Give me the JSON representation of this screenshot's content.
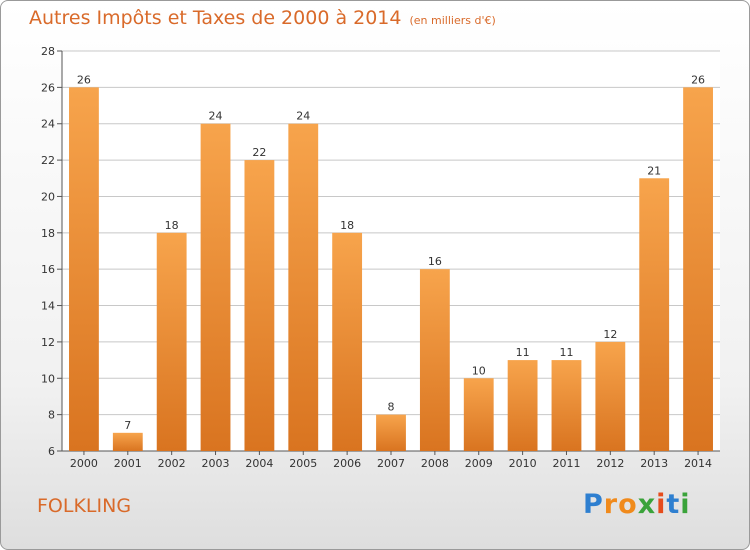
{
  "chart_data": {
    "type": "bar",
    "title": "Autres Impôts et Taxes de 2000 à 2014",
    "subtitle": "(en milliers d'€)",
    "categories": [
      "2000",
      "2001",
      "2002",
      "2003",
      "2004",
      "2005",
      "2006",
      "2007",
      "2008",
      "2009",
      "2010",
      "2011",
      "2012",
      "2013",
      "2014"
    ],
    "values": [
      26,
      7,
      18,
      24,
      22,
      24,
      18,
      8,
      16,
      10,
      11,
      11,
      12,
      21,
      26
    ],
    "data_labels": [
      "26",
      "7",
      "18",
      "24",
      "22",
      "24",
      "18",
      "8",
      "16",
      "10",
      "11",
      "11",
      "12",
      "21",
      "26"
    ],
    "ylim": [
      6,
      28
    ],
    "yticks": [
      6,
      8,
      10,
      12,
      14,
      16,
      18,
      20,
      22,
      24,
      26,
      28
    ],
    "xlabel": "",
    "ylabel": "",
    "grid": true,
    "bar_color_top": "#f7a44c",
    "bar_color_bottom": "#d97420"
  },
  "footer": {
    "town": "FOLKLING",
    "logo_letters": [
      "P",
      "r",
      "o",
      "x",
      "i",
      "t",
      "i"
    ],
    "logo_colors": [
      "#2e7fd0",
      "#f08a1c",
      "#f08a1c",
      "#3aa33a",
      "#e64c1c",
      "#2e7fd0",
      "#3aa33a"
    ]
  }
}
